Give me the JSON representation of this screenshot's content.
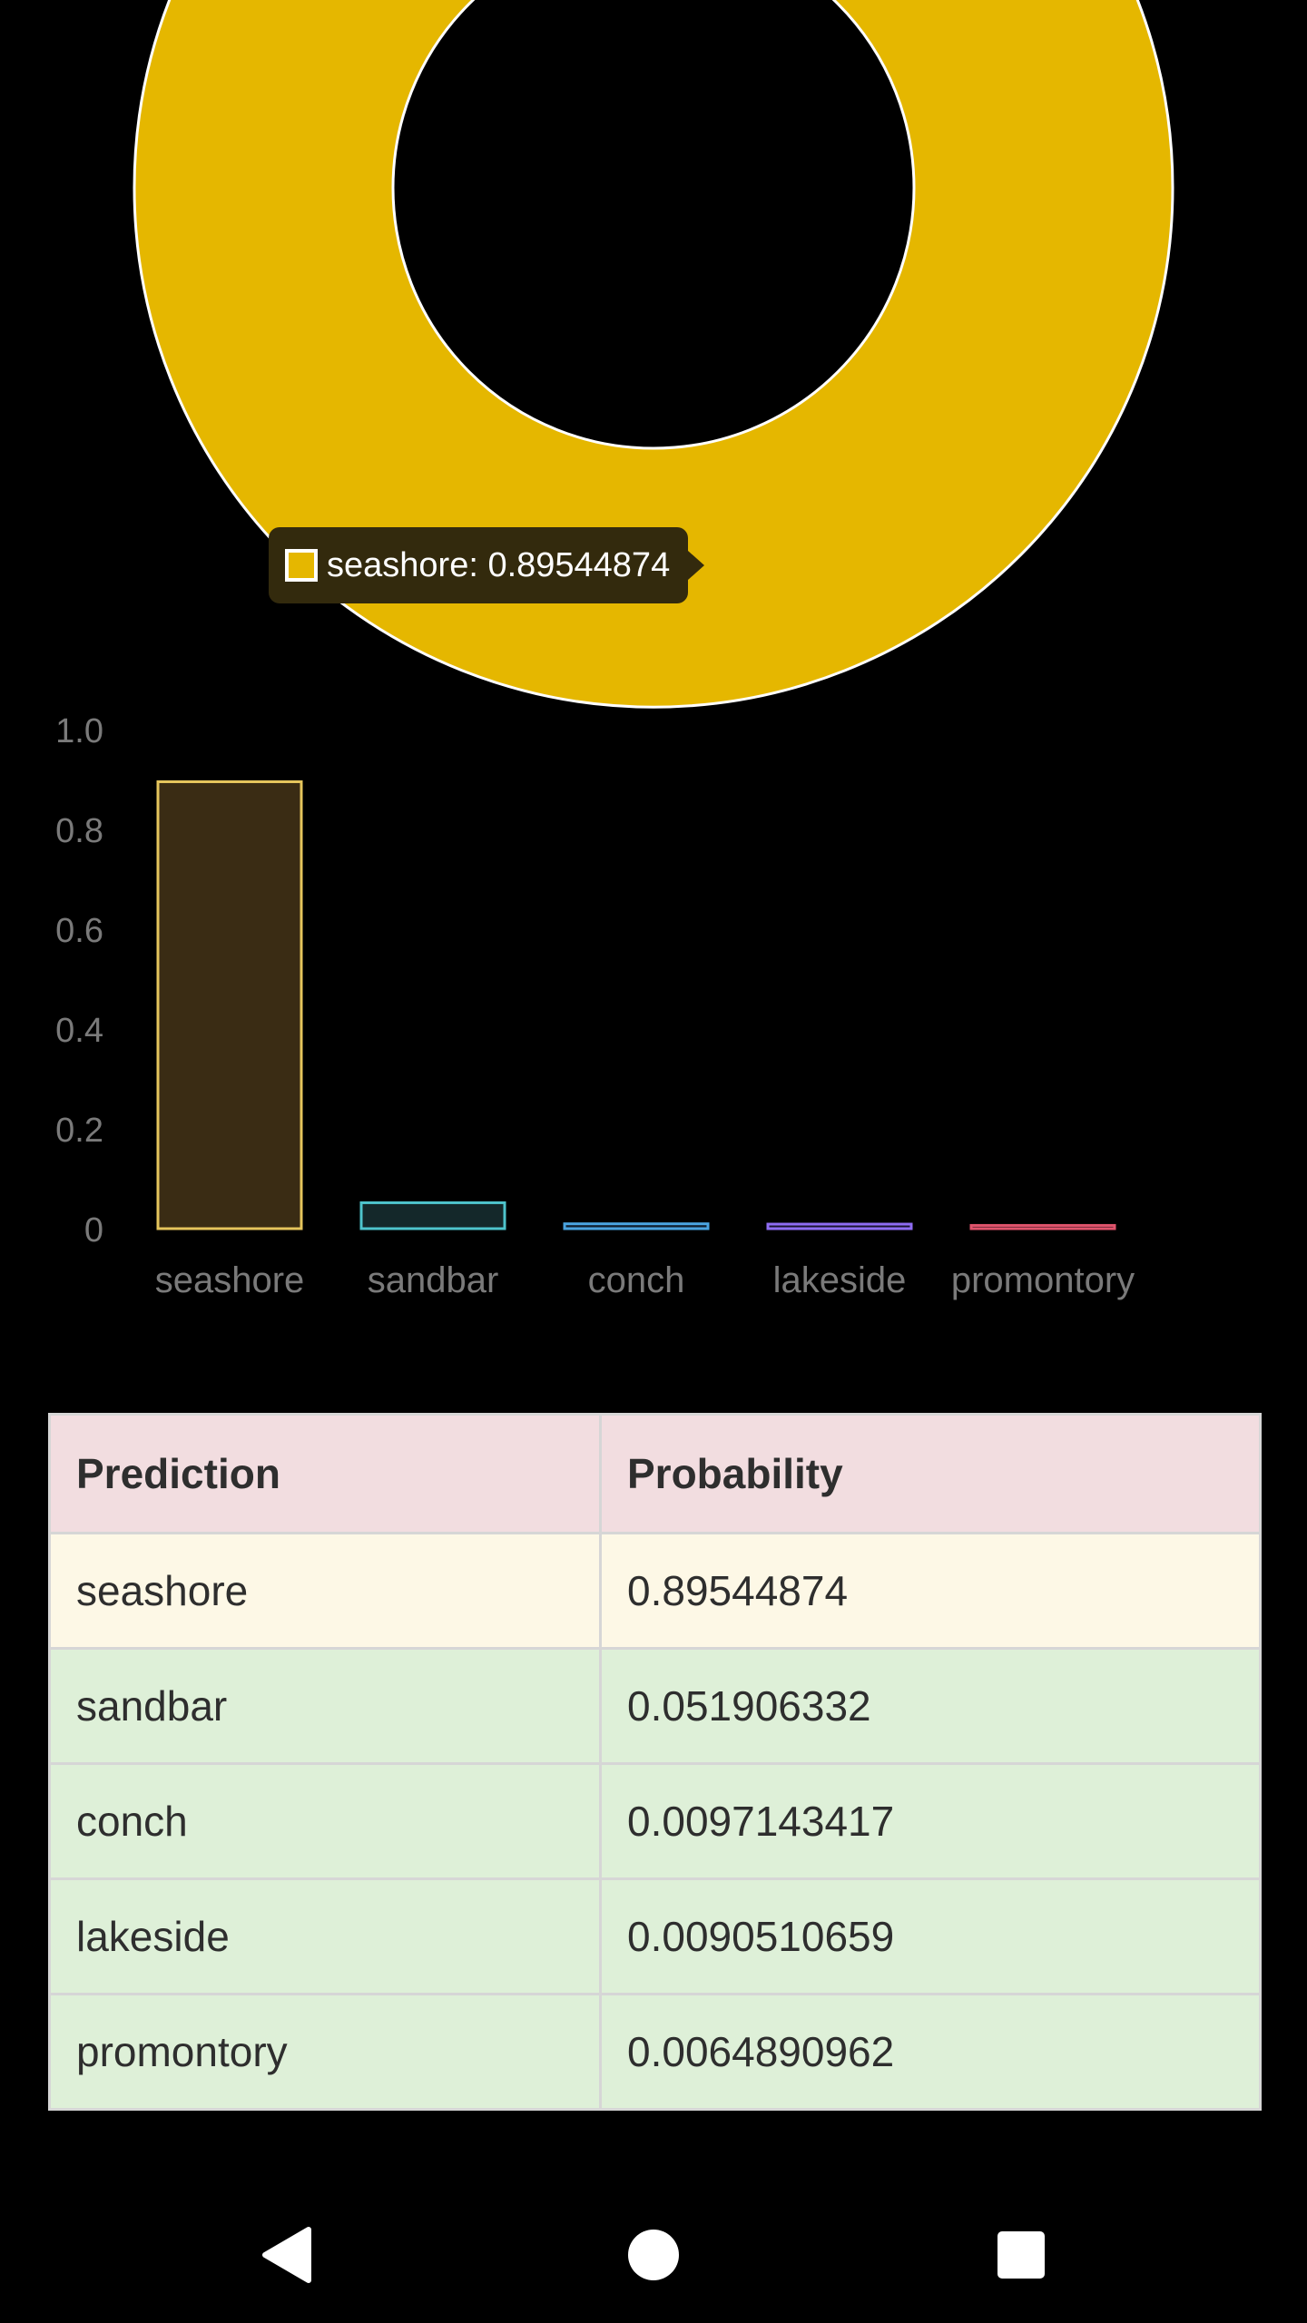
{
  "donut": {
    "slices": [
      {
        "label": "seashore",
        "value": 0.89544874,
        "color": "#e5b700"
      }
    ],
    "tooltip": {
      "text": "seashore: 0.89544874",
      "swatch_color": "#e5b700"
    }
  },
  "chart_data": {
    "type": "bar",
    "categories": [
      "seashore",
      "sandbar",
      "conch",
      "lakeside",
      "promontory"
    ],
    "values": [
      0.89544874,
      0.051906332,
      0.0097143417,
      0.0090510659,
      0.0064890962
    ],
    "ylim": [
      0,
      1.0
    ],
    "yticks": [
      "0",
      "0.2",
      "0.4",
      "0.6",
      "0.8",
      "1.0"
    ],
    "colors": [
      "#e5c55c",
      "#4ec4cc",
      "#4aa3df",
      "#8e6cf2",
      "#e0546c"
    ],
    "fills": [
      "#3a2c14",
      "#14282a",
      "#102030",
      "#1a1430",
      "#2a1018"
    ],
    "grid": false,
    "legend": "none"
  },
  "table": {
    "headers": [
      "Prediction",
      "Probability"
    ],
    "header_bg": "#f2dde0",
    "rows": [
      {
        "prediction": "seashore",
        "probability": "0.89544874",
        "bg": "#fdf8e6"
      },
      {
        "prediction": "sandbar",
        "probability": "0.051906332",
        "bg": "#def0d8"
      },
      {
        "prediction": "conch",
        "probability": "0.0097143417",
        "bg": "#def0d8"
      },
      {
        "prediction": "lakeside",
        "probability": "0.0090510659",
        "bg": "#def0d8"
      },
      {
        "prediction": "promontory",
        "probability": "0.0064890962",
        "bg": "#def0d8"
      }
    ]
  },
  "nav": {
    "buttons": [
      "back-icon",
      "home-icon",
      "recents-icon"
    ]
  }
}
